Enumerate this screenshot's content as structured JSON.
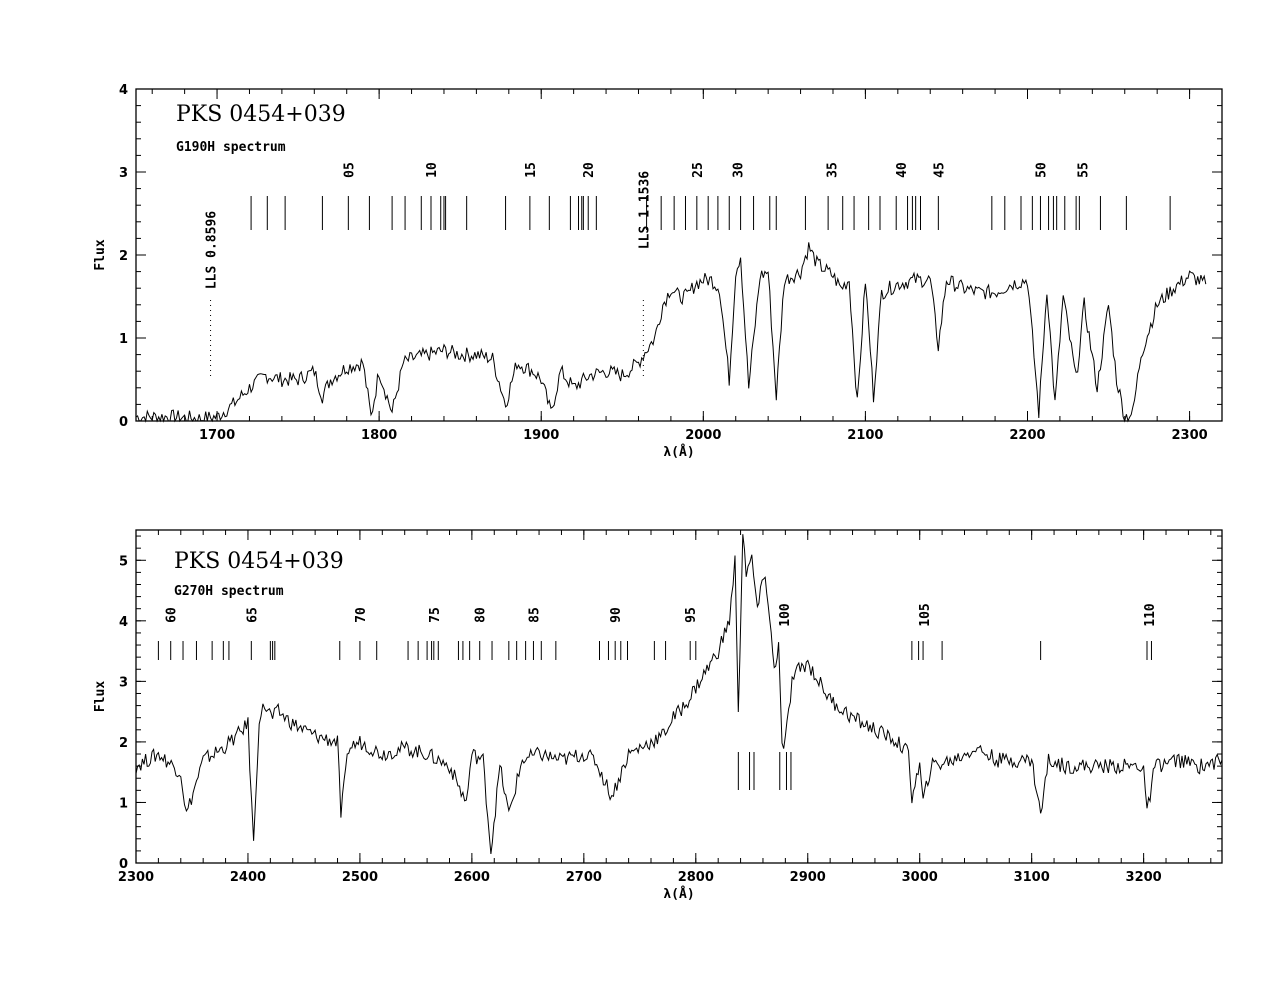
{
  "chart_data": [
    {
      "type": "line",
      "title": "PKS  0454+039",
      "subtitle": "G190H spectrum",
      "xlabel": "λ(Å)",
      "ylabel": "Flux",
      "xlim": [
        1650,
        2320
      ],
      "ylim": [
        0,
        4
      ],
      "xticks": [
        1700,
        1800,
        1900,
        2000,
        2100,
        2200,
        2300
      ],
      "xtick_labels": [
        "1700",
        "1800",
        "1900",
        "2000",
        "2100",
        "2200",
        "2300"
      ],
      "yticks": [
        0,
        1,
        2,
        3,
        4
      ],
      "ytick_labels": [
        "0",
        "1",
        "2",
        "3",
        "4"
      ],
      "series": [
        {
          "x": [
            1650,
            1670,
            1690,
            1700,
            1710,
            1720,
            1730,
            1740,
            1750,
            1760,
            1765,
            1770,
            1780,
            1790,
            1795,
            1800,
            1808,
            1815,
            1820,
            1830,
            1840,
            1850,
            1860,
            1870,
            1878,
            1885,
            1895,
            1900,
            1906,
            1912,
            1920,
            1930,
            1940,
            1950,
            1960,
            1963,
            1970,
            1975,
            1980,
            1985,
            1990,
            1995,
            2000,
            2005,
            2010,
            2016,
            2020,
            2023,
            2028,
            2035,
            2040,
            2045,
            2050,
            2060,
            2065,
            2070,
            2080,
            2085,
            2090,
            2095,
            2100,
            2105,
            2110,
            2120,
            2130,
            2140,
            2145,
            2150,
            2160,
            2170,
            2180,
            2190,
            2200,
            2207,
            2212,
            2217,
            2222,
            2230,
            2235,
            2243,
            2250,
            2255,
            2260,
            2265,
            2270,
            2280,
            2290,
            2300,
            2310
          ],
          "y": [
            0.05,
            0.05,
            0.03,
            0.05,
            0.2,
            0.4,
            0.55,
            0.5,
            0.5,
            0.6,
            0.3,
            0.5,
            0.65,
            0.7,
            0.05,
            0.6,
            0.1,
            0.7,
            0.75,
            0.8,
            0.85,
            0.8,
            0.8,
            0.75,
            0.2,
            0.7,
            0.6,
            0.5,
            0.1,
            0.6,
            0.4,
            0.55,
            0.6,
            0.55,
            0.7,
            0.8,
            1.0,
            1.4,
            1.6,
            1.5,
            1.5,
            1.65,
            1.7,
            1.7,
            1.6,
            0.5,
            1.8,
            2.0,
            0.4,
            1.75,
            1.8,
            0.3,
            1.7,
            1.8,
            2.1,
            1.9,
            1.75,
            1.6,
            1.7,
            0.2,
            1.7,
            0.3,
            1.55,
            1.65,
            1.7,
            1.7,
            0.9,
            1.7,
            1.6,
            1.55,
            1.55,
            1.65,
            1.7,
            0.1,
            1.6,
            0.2,
            1.5,
            0.5,
            1.4,
            0.4,
            1.4,
            0.5,
            0.05,
            0.1,
            0.8,
            1.4,
            1.6,
            1.75,
            1.65
          ]
        }
      ],
      "ticks_row": [
        1721,
        1731,
        1742,
        1765,
        1781,
        1794,
        1808,
        1816,
        1826,
        1832,
        1838,
        1840,
        1841,
        1854,
        1878,
        1893,
        1905,
        1918,
        1923,
        1925,
        1926,
        1929,
        1934,
        1965,
        1974,
        1982,
        1989,
        1996,
        2003,
        2009,
        2016,
        2023,
        2031,
        2041,
        2045,
        2063,
        2077,
        2086,
        2093,
        2102,
        2109,
        2119,
        2126,
        2129,
        2131,
        2134,
        2145,
        2178,
        2186,
        2196,
        2203,
        2208,
        2213,
        2216,
        2218,
        2223,
        2230,
        2232,
        2245,
        2261,
        2288
      ],
      "ticks_numbers": [
        {
          "label": "05",
          "x": 1781
        },
        {
          "label": "10",
          "x": 1832
        },
        {
          "label": "15",
          "x": 1893
        },
        {
          "label": "20",
          "x": 1929
        },
        {
          "label": "25",
          "x": 1996
        },
        {
          "label": "30",
          "x": 2021
        },
        {
          "label": "35",
          "x": 2079
        },
        {
          "label": "40",
          "x": 2122
        },
        {
          "label": "45",
          "x": 2145
        },
        {
          "label": "50",
          "x": 2208
        },
        {
          "label": "55",
          "x": 2234
        }
      ],
      "annotations": [
        {
          "label": "LLS 0.8596",
          "x": 1696
        },
        {
          "label": "LLS 1.1536",
          "x": 1963
        }
      ]
    },
    {
      "type": "line",
      "title": "PKS  0454+039",
      "subtitle": "G270H spectrum",
      "xlabel": "λ(Å)",
      "ylabel": "Flux",
      "xlim": [
        2300,
        3270
      ],
      "ylim": [
        0,
        5.5
      ],
      "xticks": [
        2300,
        2400,
        2500,
        2600,
        2700,
        2800,
        2900,
        3000,
        3100,
        3200
      ],
      "xtick_labels": [
        "2300",
        "2400",
        "2500",
        "2600",
        "2700",
        "2800",
        "2900",
        "3000",
        "3100",
        "3200"
      ],
      "yticks": [
        0,
        1,
        2,
        3,
        4,
        5
      ],
      "ytick_labels": [
        "0",
        "1",
        "2",
        "3",
        "4",
        "5"
      ],
      "series": [
        {
          "x": [
            2300,
            2320,
            2340,
            2345,
            2360,
            2378,
            2390,
            2400,
            2405,
            2410,
            2415,
            2422,
            2427,
            2440,
            2460,
            2480,
            2483,
            2490,
            2500,
            2520,
            2540,
            2560,
            2580,
            2595,
            2600,
            2610,
            2617,
            2625,
            2633,
            2645,
            2660,
            2680,
            2700,
            2710,
            2725,
            2740,
            2760,
            2770,
            2780,
            2790,
            2800,
            2810,
            2820,
            2830,
            2835,
            2838,
            2842,
            2845,
            2850,
            2855,
            2862,
            2870,
            2874,
            2877,
            2880,
            2886,
            2892,
            2900,
            2910,
            2920,
            2940,
            2960,
            2980,
            2990,
            2993,
            3000,
            3003,
            3010,
            3030,
            3050,
            3070,
            3090,
            3100,
            3108,
            3115,
            3130,
            3150,
            3170,
            3190,
            3200,
            3203,
            3210,
            3230,
            3250,
            3270
          ],
          "y": [
            1.6,
            1.8,
            1.5,
            0.8,
            1.7,
            1.9,
            2.1,
            2.3,
            0.3,
            2.4,
            2.6,
            2.4,
            2.5,
            2.3,
            2.1,
            2.0,
            0.8,
            1.9,
            2.0,
            1.8,
            1.9,
            1.8,
            1.6,
            1.0,
            1.8,
            1.7,
            0.2,
            1.6,
            0.8,
            1.7,
            1.8,
            1.7,
            1.8,
            1.7,
            1.1,
            1.8,
            2.0,
            2.1,
            2.4,
            2.6,
            2.9,
            3.2,
            3.5,
            4.0,
            5.0,
            2.4,
            5.5,
            4.8,
            5.0,
            4.2,
            4.8,
            3.2,
            3.6,
            1.9,
            2.0,
            3.0,
            3.2,
            3.3,
            3.0,
            2.7,
            2.4,
            2.2,
            2.0,
            1.8,
            1.1,
            1.6,
            1.0,
            1.6,
            1.7,
            1.9,
            1.7,
            1.7,
            1.7,
            0.8,
            1.7,
            1.6,
            1.6,
            1.6,
            1.6,
            1.6,
            0.8,
            1.6,
            1.7,
            1.6,
            1.7
          ]
        }
      ],
      "ticks_row": [
        2320,
        2331,
        2342,
        2354,
        2368,
        2378,
        2383,
        2403,
        2420,
        2422,
        2424,
        2482,
        2500,
        2515,
        2543,
        2552,
        2560,
        2564,
        2566,
        2570,
        2588,
        2592,
        2598,
        2607,
        2618,
        2633,
        2640,
        2648,
        2655,
        2662,
        2675,
        2714,
        2722,
        2728,
        2733,
        2739,
        2763,
        2773,
        2795,
        2800,
        2993,
        2999,
        3003,
        3020,
        3108,
        3203,
        3207
      ],
      "ticks_numbers": [
        {
          "label": "60",
          "x": 2331
        },
        {
          "label": "65",
          "x": 2403
        },
        {
          "label": "70",
          "x": 2500
        },
        {
          "label": "75",
          "x": 2566
        },
        {
          "label": "80",
          "x": 2607
        },
        {
          "label": "85",
          "x": 2655
        },
        {
          "label": "90",
          "x": 2728
        },
        {
          "label": "95",
          "x": 2795
        },
        {
          "label": "100",
          "x": 2879
        },
        {
          "label": "105",
          "x": 3004
        },
        {
          "label": "110",
          "x": 3205
        }
      ],
      "ticks_lower": [
        2838,
        2848,
        2852,
        2875,
        2881,
        2885
      ]
    }
  ]
}
